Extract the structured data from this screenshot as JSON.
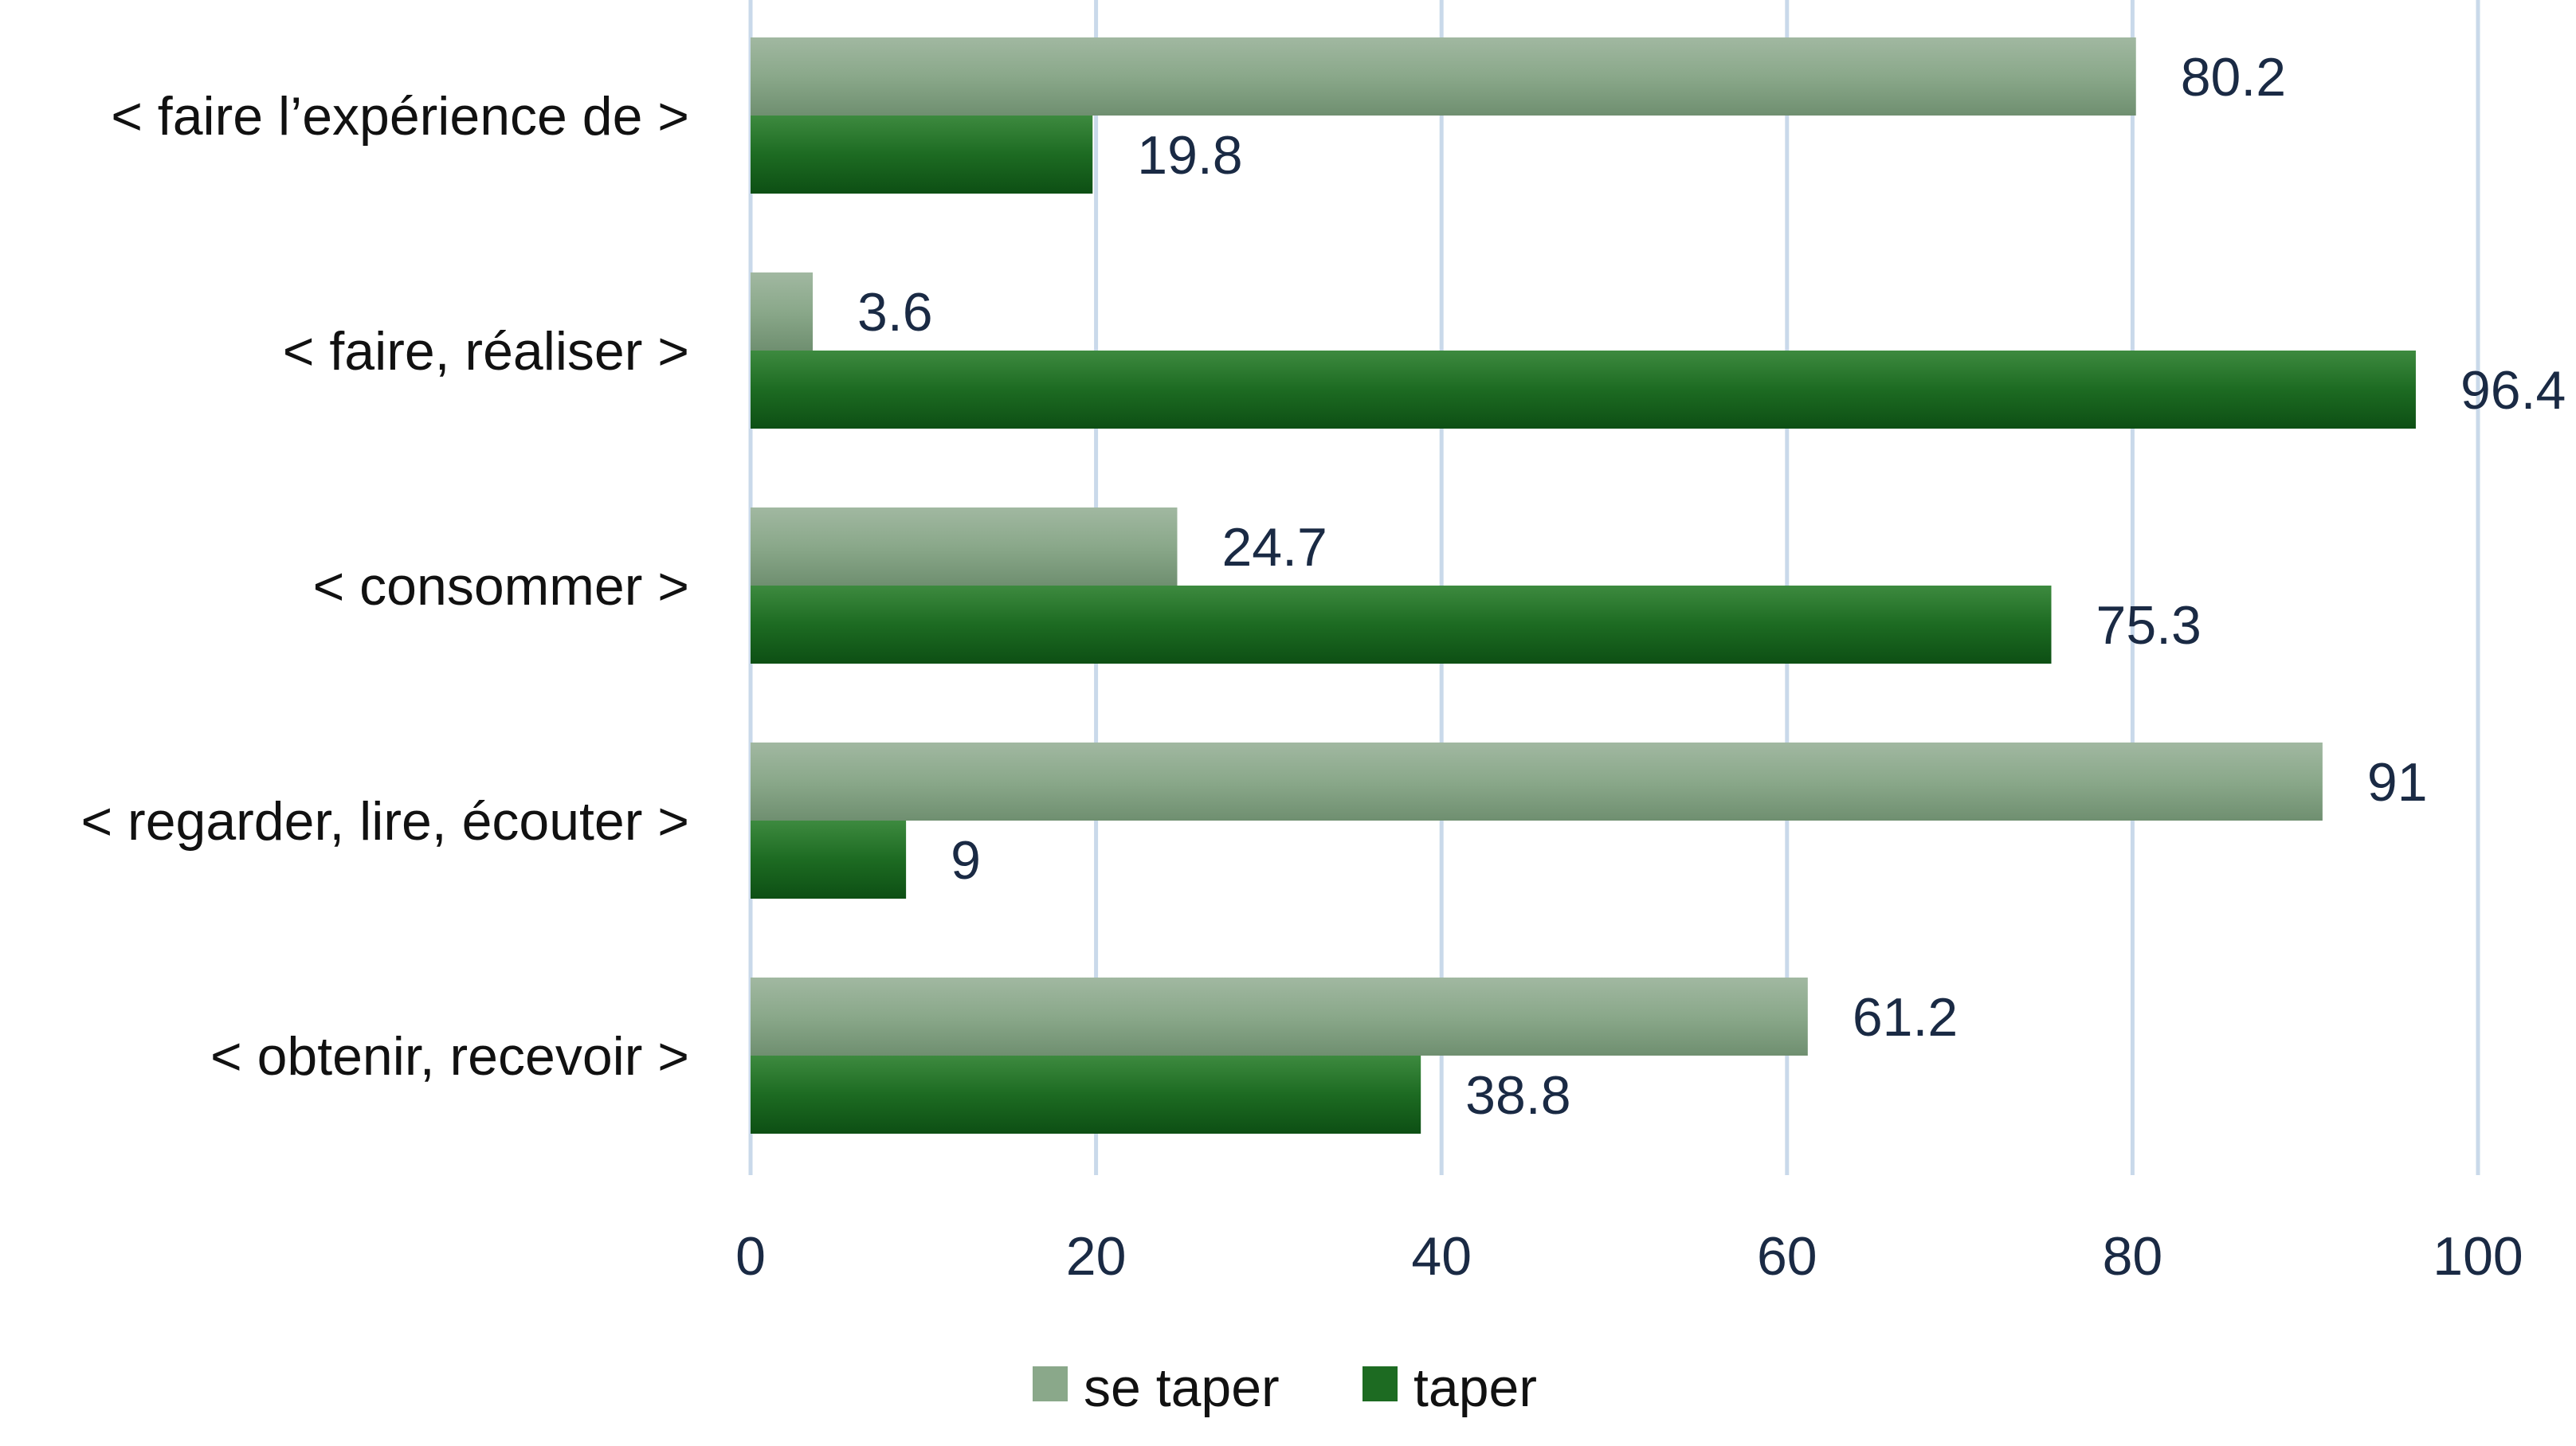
{
  "chart_data": {
    "type": "bar",
    "orientation": "horizontal",
    "categories": [
      "< faire l’expérience de >",
      "< faire, réaliser >",
      "< consommer >",
      "< regarder, lire, écouter >",
      "< obtenir, recevoir >"
    ],
    "series": [
      {
        "name": "se taper",
        "color": "#8aa88a",
        "values": [
          80.2,
          3.6,
          24.7,
          91,
          61.2
        ]
      },
      {
        "name": "taper",
        "color": "#1d6b22",
        "values": [
          19.8,
          96.4,
          75.3,
          9,
          38.8
        ]
      }
    ],
    "value_labels": [
      [
        "80.2",
        "3.6",
        "24.7",
        "91",
        "61.2"
      ],
      [
        "19.8",
        "96.4",
        "75.3",
        "9",
        "38.8"
      ]
    ],
    "xlim": [
      0,
      100
    ],
    "xticks": [
      "0",
      "20",
      "40",
      "60",
      "80",
      "100"
    ],
    "title": "",
    "xlabel": "",
    "ylabel": "",
    "grid": "vertical",
    "legend_position": "bottom",
    "colors": {
      "grid": "#c9d9ea",
      "text": "#1a2a44",
      "se_taper": "#8aa88a",
      "taper": "#1d6b22"
    }
  }
}
